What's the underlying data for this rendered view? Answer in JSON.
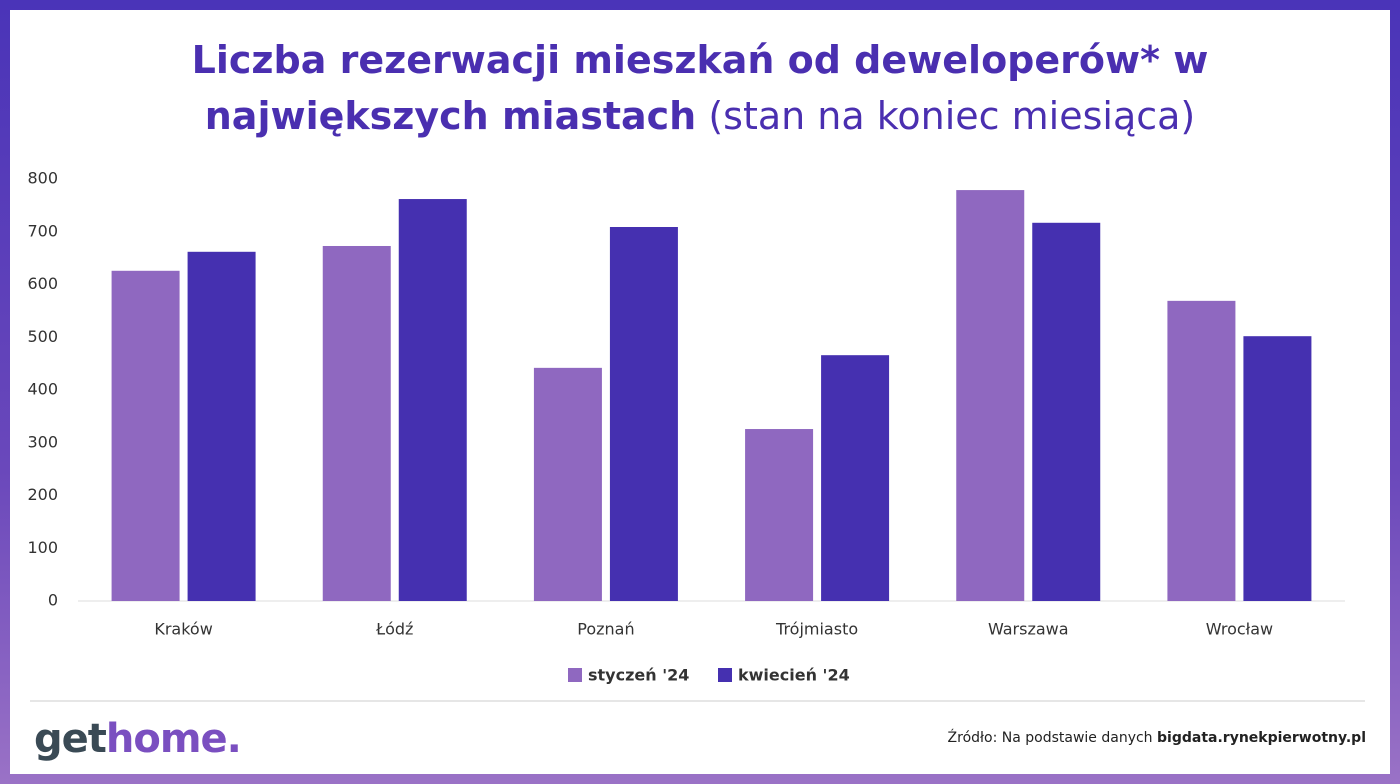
{
  "chart_data": {
    "type": "bar",
    "title": "Liczba rezerwacji mieszkań od deweloperów* w największych miastach",
    "subtitle": "(stan na koniec miesiąca)",
    "categories": [
      "Kraków",
      "Łódź",
      "Poznań",
      "Trójmiasto",
      "Warszawa",
      "Wrocław"
    ],
    "series": [
      {
        "name": "styczeń '24",
        "color": "#8f68c0",
        "values": [
          626,
          673,
          442,
          326,
          779,
          569
        ]
      },
      {
        "name": "kwiecień '24",
        "color": "#4530b0",
        "values": [
          662,
          762,
          709,
          466,
          717,
          502
        ]
      }
    ],
    "ylim": [
      0,
      800
    ],
    "yticks": [
      0,
      100,
      200,
      300,
      400,
      500,
      600,
      700,
      800
    ],
    "grid": false,
    "legend": "bottom"
  },
  "footer": {
    "logo_get": "get",
    "logo_home": "home.",
    "source_prefix": "Źródło: Na podstawie danych",
    "source_link": "bigdata.rynekpierwotny.pl"
  }
}
